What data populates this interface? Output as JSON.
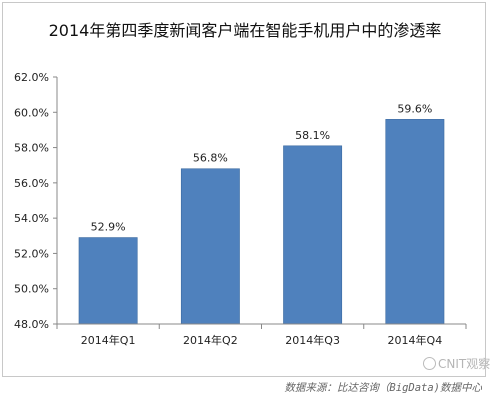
{
  "title": "2014年第四季度新闻客户端在智能手机用户中的渗透率",
  "source_note": "数据来源：比达咨询（BigData)数据中心",
  "watermark": "CNIT观察",
  "colors": {
    "bar": "#4f81bd",
    "bar_edge": "#3c6aa0",
    "axis": "#888888"
  },
  "chart_data": {
    "type": "bar",
    "title": "2014年第四季度新闻客户端在智能手机用户中的渗透率",
    "categories": [
      "2014年Q1",
      "2014年Q2",
      "2014年Q3",
      "2014年Q4"
    ],
    "values": [
      52.9,
      56.8,
      58.1,
      59.6
    ],
    "value_labels": [
      "52.9%",
      "56.8%",
      "58.1%",
      "59.6%"
    ],
    "ylim": [
      48,
      62
    ],
    "yticks": [
      48,
      50,
      52,
      54,
      56,
      58,
      60,
      62
    ],
    "ytick_labels": [
      "48.0%",
      "50.0%",
      "52.0%",
      "54.0%",
      "56.0%",
      "58.0%",
      "60.0%",
      "62.0%"
    ],
    "xlabel": "",
    "ylabel": "",
    "grid": false,
    "legend": "none"
  }
}
